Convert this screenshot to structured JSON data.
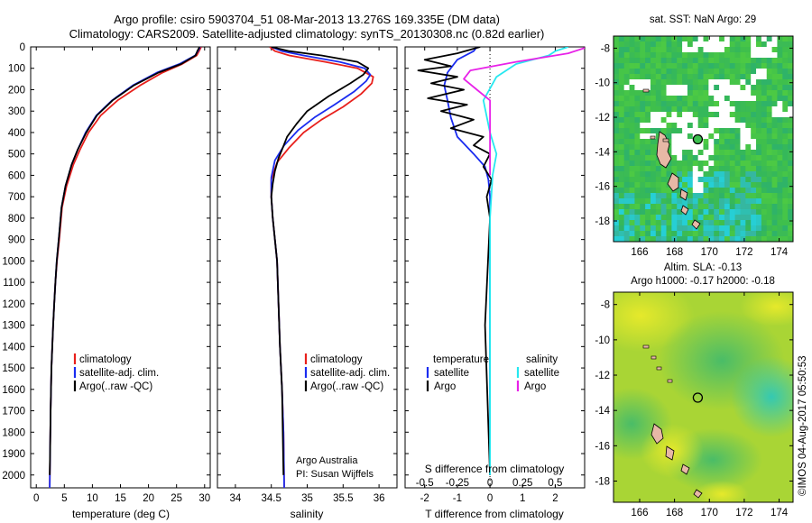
{
  "title_line1": "Argo profile: csiro 5903704_51 08-Mar-2013 13.276S 169.335E (DM data)",
  "title_line2": "Climatology: CARS2009. Satellite-adjusted climatology: synTS_20130308.nc (0.82d earlier)",
  "watermark": "©IMOS 04-Aug-2017 05:50:53",
  "colors": {
    "climatology": "#e8201c",
    "satellite": "#1a2cf0",
    "argo": "#000000",
    "cyan": "#26e8f0",
    "magenta": "#e822e8"
  },
  "chart_data": [
    {
      "id": "temperature",
      "type": "line",
      "xlabel": "temperature (deg C)",
      "ylabel": "",
      "xlim": [
        -1,
        31
      ],
      "ylim": [
        0,
        2060
      ],
      "y_inverted": true,
      "xticks": [
        0,
        5,
        10,
        15,
        20,
        25,
        30
      ],
      "yticks": [
        0,
        100,
        200,
        300,
        400,
        500,
        600,
        700,
        800,
        900,
        1000,
        1100,
        1200,
        1300,
        1400,
        1500,
        1600,
        1700,
        1800,
        1900,
        2000
      ],
      "series": [
        {
          "name": "climatology",
          "color_key": "climatology",
          "x": [
            29.4,
            29.0,
            28.6,
            26.0,
            22.5,
            18.5,
            14.5,
            11.5,
            9.3,
            7.8,
            6.6,
            5.4,
            4.6,
            4.1,
            3.7,
            3.4,
            3.2,
            3.0,
            2.7,
            2.55,
            2.45,
            2.4
          ],
          "y": [
            0,
            20,
            40,
            80,
            120,
            180,
            250,
            320,
            400,
            480,
            550,
            650,
            750,
            900,
            1000,
            1100,
            1200,
            1300,
            1500,
            1700,
            1900,
            2060
          ]
        },
        {
          "name": "satellite-adj. clim.",
          "color_key": "satellite",
          "x": [
            29.2,
            28.8,
            28.3,
            25.5,
            21.5,
            17.2,
            13.5,
            10.7,
            8.8,
            7.4,
            6.3,
            5.2,
            4.5,
            4.0,
            3.65,
            3.4,
            3.2,
            3.0,
            2.7,
            2.55,
            2.45,
            2.4
          ],
          "y": [
            0,
            20,
            40,
            80,
            120,
            180,
            250,
            320,
            400,
            480,
            550,
            650,
            750,
            900,
            1000,
            1100,
            1200,
            1300,
            1500,
            1700,
            1900,
            2060
          ]
        },
        {
          "name": "Argo(..raw -QC)",
          "color_key": "argo",
          "x": [
            29.1,
            28.7,
            28.4,
            25.8,
            21.8,
            17.4,
            13.6,
            10.8,
            8.9,
            7.4,
            6.3,
            5.2,
            4.5,
            4.0,
            3.65,
            3.4,
            3.2,
            3.0,
            2.7,
            2.55,
            2.45,
            2.4
          ],
          "y": [
            0,
            20,
            40,
            80,
            120,
            180,
            250,
            320,
            400,
            480,
            550,
            650,
            750,
            900,
            1000,
            1100,
            1200,
            1300,
            1500,
            1700,
            1900,
            2000
          ]
        }
      ],
      "legend": [
        "climatology",
        "satellite-adj. clim.",
        "Argo(..raw -QC)"
      ]
    },
    {
      "id": "salinity",
      "type": "line",
      "xlabel": "salinity",
      "ylabel": "",
      "xlim": [
        33.75,
        36.25
      ],
      "ylim": [
        0,
        2060
      ],
      "y_inverted": true,
      "xticks": [
        34,
        34.5,
        35,
        35.5,
        36
      ],
      "series": [
        {
          "name": "climatology",
          "color_key": "climatology",
          "x": [
            34.48,
            34.55,
            34.75,
            35.25,
            35.7,
            35.92,
            35.9,
            35.75,
            35.5,
            35.2,
            34.95,
            34.75,
            34.58,
            34.5,
            34.5,
            34.52,
            34.55,
            34.58,
            34.6,
            34.62,
            34.65,
            34.67,
            34.68
          ],
          "y": [
            0,
            20,
            40,
            70,
            100,
            140,
            170,
            220,
            280,
            340,
            400,
            470,
            540,
            620,
            700,
            800,
            900,
            1000,
            1200,
            1400,
            1600,
            1800,
            2060
          ]
        },
        {
          "name": "satellite-adj. clim.",
          "color_key": "satellite",
          "x": [
            34.5,
            34.65,
            34.95,
            35.45,
            35.8,
            35.88,
            35.82,
            35.65,
            35.38,
            35.1,
            34.87,
            34.68,
            34.55,
            34.5,
            34.5,
            34.52,
            34.55,
            34.58,
            34.6,
            34.62,
            34.65,
            34.67,
            34.68
          ],
          "y": [
            0,
            20,
            40,
            70,
            100,
            130,
            160,
            210,
            270,
            330,
            390,
            460,
            530,
            610,
            700,
            800,
            900,
            1000,
            1200,
            1400,
            1600,
            1800,
            2060
          ]
        },
        {
          "name": "Argo(..raw -QC)",
          "color_key": "argo",
          "x": [
            34.5,
            34.75,
            35.2,
            35.7,
            35.85,
            35.78,
            35.6,
            35.3,
            35.0,
            34.85,
            34.72,
            34.65,
            34.6,
            34.55,
            34.52,
            34.5,
            34.52,
            34.55,
            34.58,
            34.6,
            34.62,
            34.65,
            34.67
          ],
          "y": [
            0,
            20,
            40,
            70,
            100,
            130,
            170,
            230,
            300,
            360,
            420,
            480,
            520,
            580,
            640,
            700,
            800,
            900,
            1000,
            1200,
            1400,
            1600,
            2000
          ]
        }
      ],
      "legend": [
        "climatology",
        "satellite-adj. clim.",
        "Argo(..raw -QC)"
      ],
      "annotations": [
        "Argo Australia",
        "PI: Susan Wijffels"
      ]
    },
    {
      "id": "difference",
      "type": "line",
      "xlabel": "T difference from climatology",
      "xlabel_top": "S difference from climatology",
      "xlim_T": [
        -2.6,
        2.9
      ],
      "xticks_T": [
        -2,
        -1,
        0,
        1,
        2
      ],
      "xticks_S_values": [
        -0.5,
        -0.25,
        0,
        0.25,
        0.5
      ],
      "xticks_S_labels": [
        "-0.5",
        "-0.25",
        "0",
        "0.25",
        "0.5"
      ],
      "ylim": [
        0,
        2060
      ],
      "y_inverted": true,
      "series": [
        {
          "name": "temperature satellite",
          "color_key": "satellite",
          "axis": "T",
          "x": [
            -0.4,
            -0.5,
            -1.0,
            -1.3,
            -1.4,
            -1.3,
            -1.2,
            -1.0,
            -0.5,
            -0.15,
            -0.05,
            0,
            0,
            0,
            0,
            0
          ],
          "y": [
            0,
            20,
            60,
            120,
            180,
            250,
            330,
            420,
            500,
            560,
            620,
            700,
            900,
            1200,
            1600,
            2000
          ]
        },
        {
          "name": "temperature Argo",
          "color_key": "argo",
          "axis": "T",
          "x": [
            -0.3,
            -1.0,
            -2.0,
            -1.2,
            -2.2,
            -1.0,
            -1.8,
            -0.8,
            -1.9,
            -0.7,
            -1.5,
            -0.5,
            -1.2,
            -0.2,
            -0.5,
            0.0,
            -0.2,
            0.05,
            -0.1,
            0.0,
            -0.15,
            0.0
          ],
          "y": [
            0,
            30,
            60,
            90,
            110,
            140,
            170,
            200,
            240,
            270,
            300,
            340,
            380,
            420,
            460,
            500,
            560,
            620,
            700,
            800,
            1300,
            2000
          ]
        },
        {
          "name": "salinity satellite",
          "color_key": "cyan",
          "axis": "S",
          "x": [
            0.6,
            0.5,
            0.45,
            0.2,
            0.05,
            -0.05,
            0.0,
            0.05,
            0.02,
            0.0,
            0.0,
            0.0,
            0.0
          ],
          "y": [
            0,
            20,
            40,
            80,
            140,
            250,
            400,
            500,
            600,
            800,
            1200,
            1600,
            2000
          ]
        },
        {
          "name": "salinity Argo",
          "color_key": "magenta",
          "axis": "S",
          "x": [
            0.75,
            0.6,
            0.2,
            -0.15,
            -0.2,
            -0.1,
            0.0,
            0.0,
            0.0
          ],
          "y": [
            0,
            30,
            70,
            110,
            150,
            200,
            250,
            400,
            600
          ]
        }
      ],
      "legend_titles": [
        "temperature",
        "salinity"
      ],
      "legend": [
        "satellite",
        "Argo",
        "satellite",
        "Argo"
      ]
    }
  ],
  "maps": [
    {
      "id": "sst-map",
      "title": "sat. SST: NaN Argo: 29",
      "yticks": [
        "-8",
        "-10",
        "-12",
        "-14",
        "-16",
        "-18"
      ],
      "xticks": [
        "166",
        "168",
        "170",
        "172",
        "174"
      ],
      "lon_range": [
        164.5,
        174.8
      ],
      "lat_range": [
        -19.2,
        -7.3
      ],
      "marker": {
        "lon": 169.335,
        "lat": -13.276
      }
    },
    {
      "id": "sla-map",
      "title_line1": "Altim. SLA: -0.13",
      "title_line2": "Argo h1000: -0.17 h2000: -0.18",
      "yticks": [
        "-8",
        "-10",
        "-12",
        "-14",
        "-16",
        "-18"
      ],
      "xticks": [
        "166",
        "168",
        "170",
        "172",
        "174"
      ],
      "lon_range": [
        164.5,
        174.8
      ],
      "lat_range": [
        -19.2,
        -7.3
      ],
      "marker": {
        "lon": 169.335,
        "lat": -13.276
      }
    }
  ]
}
